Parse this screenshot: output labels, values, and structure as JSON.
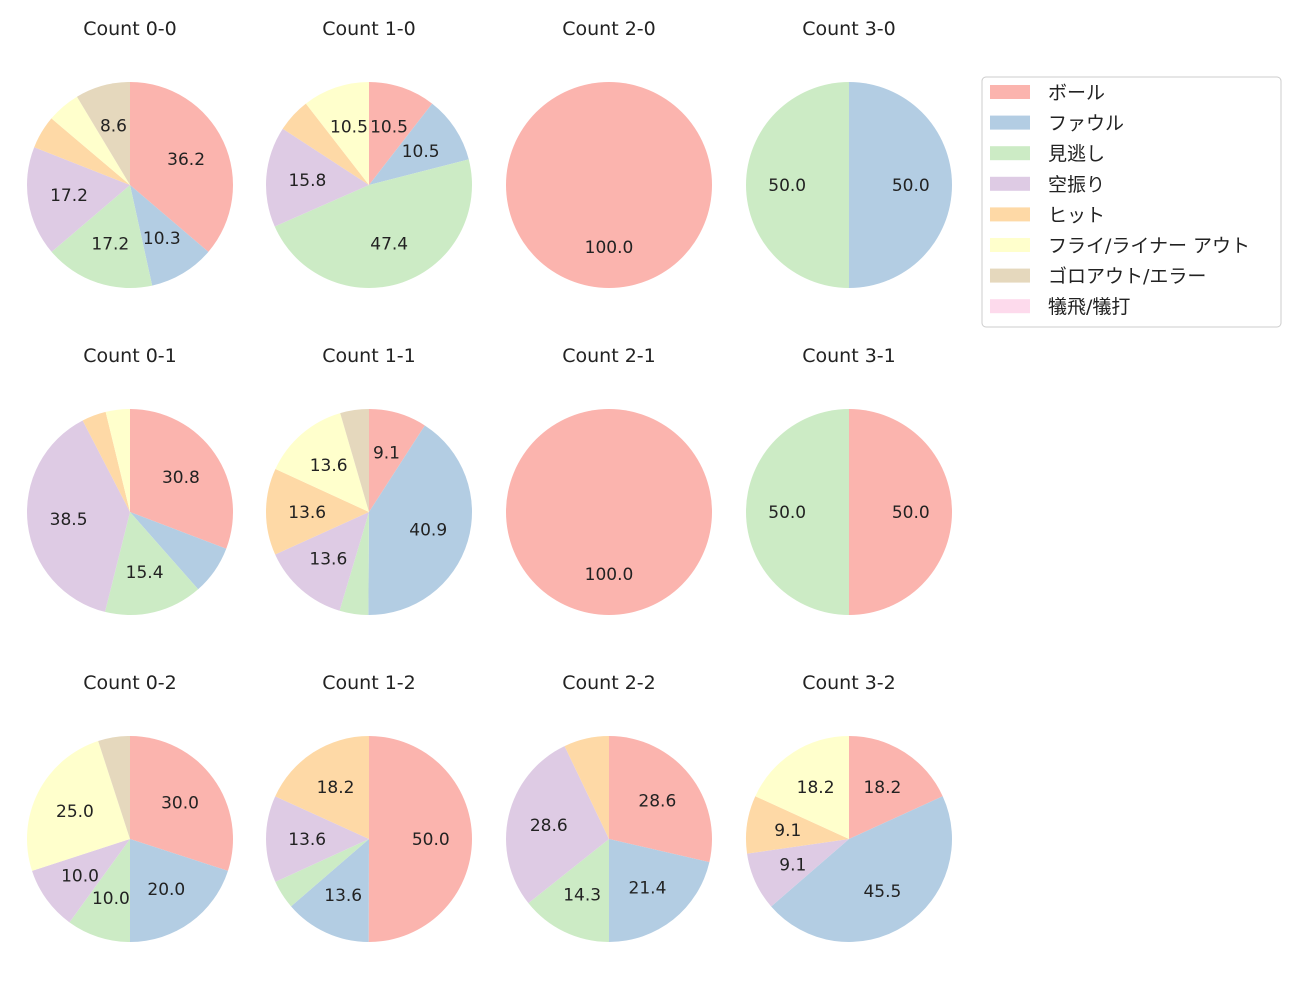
{
  "chart_data": {
    "type": "pie",
    "start_angle_deg": 90,
    "direction": "clockwise",
    "categories": [
      "ボール",
      "ファウル",
      "見逃し",
      "空振り",
      "ヒット",
      "フライ/ライナー アウト",
      "ゴロアウト/エラー",
      "犠飛/犠打"
    ],
    "colors": [
      "#fbb4ae",
      "#b3cde3",
      "#ccebc5",
      "#decbe4",
      "#fed9a6",
      "#ffffcc",
      "#e5d8bd",
      "#fddaec"
    ],
    "legend_position": "upper-right",
    "pies": [
      {
        "title": "Count 0-0",
        "values": [
          36.2,
          10.3,
          17.2,
          17.2,
          5.2,
          5.2,
          8.6,
          0
        ]
      },
      {
        "title": "Count 1-0",
        "values": [
          10.5,
          10.5,
          47.4,
          15.8,
          5.3,
          10.5,
          0,
          0
        ]
      },
      {
        "title": "Count 2-0",
        "values": [
          100,
          0,
          0,
          0,
          0,
          0,
          0,
          0
        ]
      },
      {
        "title": "Count 3-0",
        "values": [
          0,
          50,
          50,
          0,
          0,
          0,
          0,
          0
        ]
      },
      {
        "title": "Count 0-1",
        "values": [
          30.8,
          7.7,
          15.4,
          38.5,
          3.8,
          3.8,
          0,
          0
        ]
      },
      {
        "title": "Count 1-1",
        "values": [
          9.1,
          40.9,
          4.5,
          13.6,
          13.6,
          13.6,
          4.5,
          0
        ]
      },
      {
        "title": "Count 2-1",
        "values": [
          100,
          0,
          0,
          0,
          0,
          0,
          0,
          0
        ]
      },
      {
        "title": "Count 3-1",
        "values": [
          50,
          0,
          50,
          0,
          0,
          0,
          0,
          0
        ]
      },
      {
        "title": "Count 0-2",
        "values": [
          30,
          20,
          10,
          10,
          0,
          25,
          5,
          0
        ]
      },
      {
        "title": "Count 1-2",
        "values": [
          50,
          13.6,
          4.5,
          13.6,
          18.2,
          0,
          0,
          0
        ]
      },
      {
        "title": "Count 2-2",
        "values": [
          28.6,
          21.4,
          14.3,
          28.6,
          7.1,
          0,
          0,
          0
        ]
      },
      {
        "title": "Count 3-2",
        "values": [
          18.2,
          45.5,
          0,
          9.1,
          9.1,
          18.2,
          0,
          0
        ]
      }
    ]
  }
}
